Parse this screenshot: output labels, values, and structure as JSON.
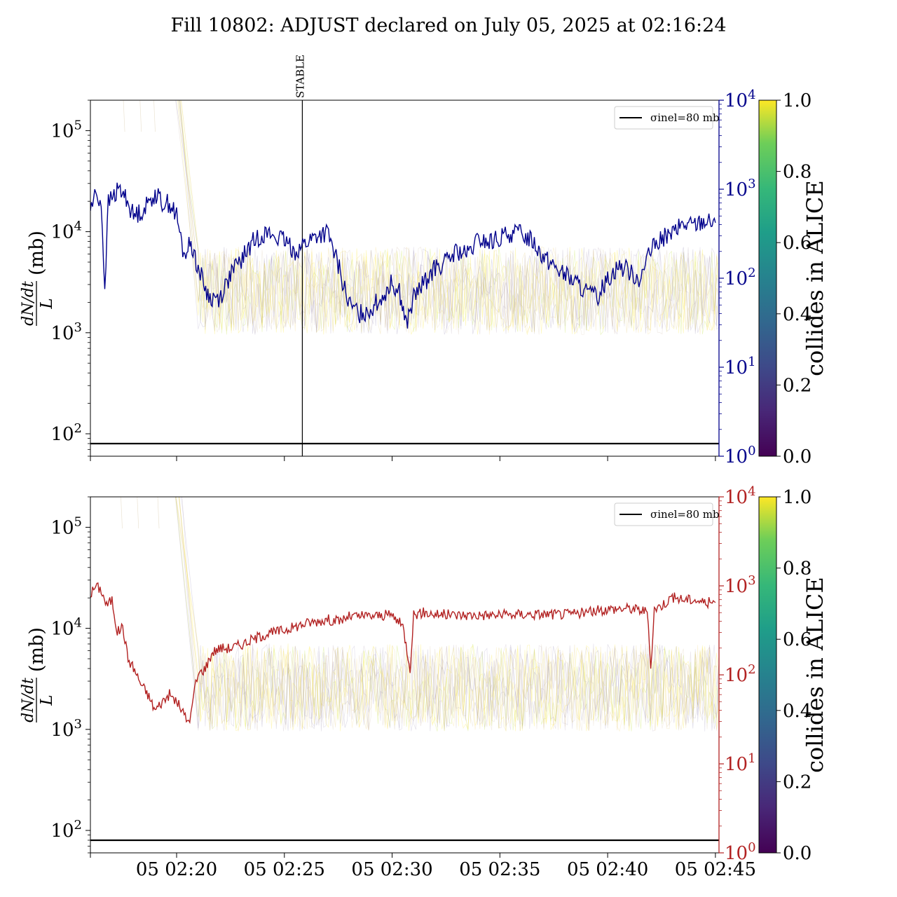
{
  "title": "Fill 10802: ADJUST declared on July 05, 2025 at 02:16:24",
  "colors": {
    "top_series": "#00008b",
    "bottom_series": "#b22222",
    "sigma_line": "#000000",
    "bottom_right_axis": "#b22222",
    "top_right_axis": "#00008b"
  },
  "chart_data": [
    {
      "type": "line",
      "panel": "top",
      "ylabel_left": "dN/dt / L (mb)",
      "ylabel_left_num": "dN/dt",
      "ylabel_left_den": "L",
      "ylabel_left_unit": "(mb)",
      "left_axis": {
        "scale": "log",
        "ylim": [
          60,
          200000
        ],
        "ticks": [
          100,
          1000,
          10000,
          100000
        ],
        "tick_labels": [
          "10²",
          "10³",
          "10⁴",
          "10⁵"
        ]
      },
      "right_axis": {
        "scale": "log",
        "ylim": [
          1,
          10000
        ],
        "ticks": [
          1,
          10,
          100,
          1000,
          10000
        ],
        "tick_labels": [
          "10⁰",
          "10¹",
          "10²",
          "10³",
          "10⁴"
        ]
      },
      "x_axis": {
        "type": "time",
        "xlim": [
          "02:16:00",
          "02:45:10"
        ],
        "ticks": [
          "02:20",
          "02:25",
          "02:30",
          "02:35",
          "02:40",
          "02:45"
        ]
      },
      "annotations": [
        {
          "type": "vline",
          "x": "02:25:50",
          "label": "STABLE"
        }
      ],
      "legend": {
        "position": "top-right",
        "label": "σinel=80 mb"
      },
      "hline": {
        "y": 80,
        "label": "σinel=80 mb"
      },
      "colorbar": {
        "label": "collides in ALICE",
        "range": [
          0,
          1
        ],
        "ticks": [
          "0.0",
          "0.2",
          "0.4",
          "0.6",
          "0.8",
          "1.0"
        ],
        "colormap": "viridis"
      },
      "series": [
        {
          "axis": "right",
          "color": "#00008b",
          "x": [
            "02:16:00",
            "02:16:15",
            "02:16:30",
            "02:16:40",
            "02:16:50",
            "02:17:00",
            "02:17:20",
            "02:17:40",
            "02:18:00",
            "02:18:30",
            "02:19:00",
            "02:19:20",
            "02:19:40",
            "02:20:00",
            "02:20:20",
            "02:20:40",
            "02:21:00",
            "02:21:30",
            "02:22:00",
            "02:22:30",
            "02:23:00",
            "02:23:30",
            "02:24:00",
            "02:24:30",
            "02:25:00",
            "02:25:30",
            "02:26:00",
            "02:26:30",
            "02:27:00",
            "02:27:30",
            "02:28:00",
            "02:28:30",
            "02:29:00",
            "02:29:30",
            "02:30:00",
            "02:30:20",
            "02:30:40",
            "02:31:00",
            "02:31:30",
            "02:32:00",
            "02:32:30",
            "02:33:00",
            "02:33:30",
            "02:34:00",
            "02:34:30",
            "02:35:00",
            "02:35:30",
            "02:36:00",
            "02:36:30",
            "02:37:00",
            "02:37:30",
            "02:38:00",
            "02:38:30",
            "02:39:00",
            "02:39:30",
            "02:40:00",
            "02:40:30",
            "02:41:00",
            "02:41:30",
            "02:42:00",
            "02:42:30",
            "02:43:00",
            "02:43:30",
            "02:44:00",
            "02:44:30",
            "02:45:00"
          ],
          "values": [
            600,
            900,
            700,
            80,
            700,
            800,
            1000,
            800,
            500,
            600,
            900,
            700,
            700,
            500,
            180,
            250,
            130,
            60,
            60,
            110,
            160,
            250,
            320,
            300,
            260,
            200,
            250,
            300,
            320,
            140,
            50,
            40,
            45,
            60,
            90,
            70,
            30,
            60,
            90,
            130,
            150,
            200,
            180,
            270,
            250,
            280,
            320,
            320,
            270,
            180,
            140,
            110,
            90,
            70,
            60,
            100,
            140,
            120,
            100,
            200,
            280,
            320,
            400,
            400,
            450,
            420
          ]
        }
      ]
    },
    {
      "type": "line",
      "panel": "bottom",
      "ylabel_left": "dN/dt / L (mb)",
      "ylabel_left_num": "dN/dt",
      "ylabel_left_den": "L",
      "ylabel_left_unit": "(mb)",
      "left_axis": {
        "scale": "log",
        "ylim": [
          60,
          200000
        ],
        "ticks": [
          100,
          1000,
          10000,
          100000
        ],
        "tick_labels": [
          "10²",
          "10³",
          "10⁴",
          "10⁵"
        ]
      },
      "right_axis": {
        "scale": "log",
        "ylim": [
          1,
          10000
        ],
        "ticks": [
          1,
          10,
          100,
          1000,
          10000
        ],
        "tick_labels": [
          "10⁰",
          "10¹",
          "10²",
          "10³",
          "10⁴"
        ]
      },
      "x_axis": {
        "type": "time",
        "xlim": [
          "02:16:00",
          "02:45:10"
        ],
        "ticks": [
          "02:20",
          "02:25",
          "02:30",
          "02:35",
          "02:40",
          "02:45"
        ],
        "tick_labels": [
          "05 02:20",
          "05 02:25",
          "05 02:30",
          "05 02:35",
          "05 02:40",
          "05 02:45"
        ]
      },
      "legend": {
        "position": "top-right",
        "label": "σinel=80 mb"
      },
      "hline": {
        "y": 80,
        "label": "σinel=80 mb"
      },
      "colorbar": {
        "label": "collides in ALICE",
        "range": [
          0,
          1
        ],
        "ticks": [
          "0.0",
          "0.2",
          "0.4",
          "0.6",
          "0.8",
          "1.0"
        ],
        "colormap": "viridis"
      },
      "series": [
        {
          "axis": "right",
          "color": "#b22222",
          "x": [
            "02:16:00",
            "02:16:15",
            "02:16:30",
            "02:16:45",
            "02:17:00",
            "02:17:15",
            "02:17:30",
            "02:17:45",
            "02:18:00",
            "02:18:20",
            "02:18:40",
            "02:19:00",
            "02:19:20",
            "02:19:40",
            "02:20:00",
            "02:20:15",
            "02:20:30",
            "02:20:40",
            "02:20:50",
            "02:21:00",
            "02:21:20",
            "02:21:40",
            "02:22:00",
            "02:22:30",
            "02:23:00",
            "02:24:00",
            "02:25:00",
            "02:26:00",
            "02:27:00",
            "02:27:30",
            "02:28:00",
            "02:29:00",
            "02:30:00",
            "02:30:30",
            "02:30:50",
            "02:31:00",
            "02:31:30",
            "02:32:00",
            "02:33:00",
            "02:34:00",
            "02:35:00",
            "02:36:00",
            "02:37:00",
            "02:38:00",
            "02:39:00",
            "02:40:00",
            "02:41:00",
            "02:41:50",
            "02:42:00",
            "02:42:10",
            "02:42:30",
            "02:43:00",
            "02:43:30",
            "02:44:00",
            "02:44:30",
            "02:45:00"
          ],
          "values": [
            800,
            1000,
            900,
            600,
            700,
            300,
            350,
            150,
            120,
            80,
            60,
            40,
            50,
            60,
            50,
            40,
            30,
            35,
            70,
            100,
            120,
            180,
            200,
            200,
            220,
            280,
            320,
            380,
            420,
            400,
            450,
            460,
            470,
            350,
            120,
            480,
            500,
            480,
            470,
            470,
            470,
            480,
            480,
            480,
            500,
            550,
            560,
            520,
            120,
            550,
            600,
            750,
            700,
            700,
            650,
            650
          ]
        }
      ]
    }
  ]
}
